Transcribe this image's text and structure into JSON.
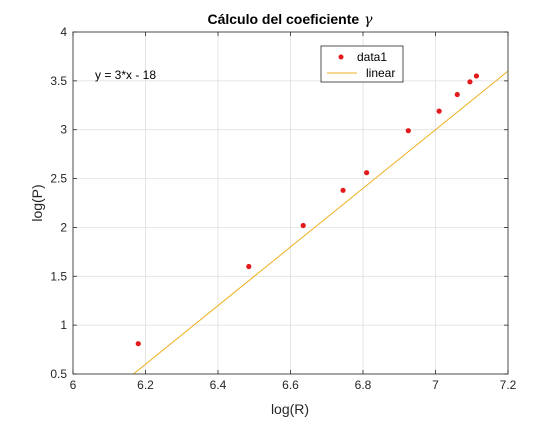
{
  "chart_data": {
    "type": "scatter",
    "title": "Cálculo del coeficiente",
    "title_symbol": "γ",
    "xlabel": "log(R)",
    "ylabel": "log(P)",
    "xlim": [
      6.0,
      7.2
    ],
    "ylim": [
      0.5,
      4.0
    ],
    "xticks": [
      "6",
      "6.2",
      "6.4",
      "6.6",
      "6.8",
      "7",
      "7.2"
    ],
    "yticks": [
      "0.5",
      "1",
      "1.5",
      "2",
      "2.5",
      "3",
      "3.5",
      "4"
    ],
    "grid": true,
    "legend_position": "top-right",
    "annotation": "y = 3*x - 18",
    "series": [
      {
        "name": "data1",
        "kind": "points",
        "color": "#e31a1c",
        "x": [
          6.18,
          6.485,
          6.635,
          6.745,
          6.81,
          6.925,
          7.01,
          7.06,
          7.095,
          7.113
        ],
        "y": [
          0.81,
          1.6,
          2.02,
          2.38,
          2.56,
          2.99,
          3.19,
          3.36,
          3.49,
          3.55
        ]
      },
      {
        "name": "linear",
        "kind": "line",
        "color": "#edb120",
        "slope": 3,
        "intercept": -18
      }
    ]
  }
}
